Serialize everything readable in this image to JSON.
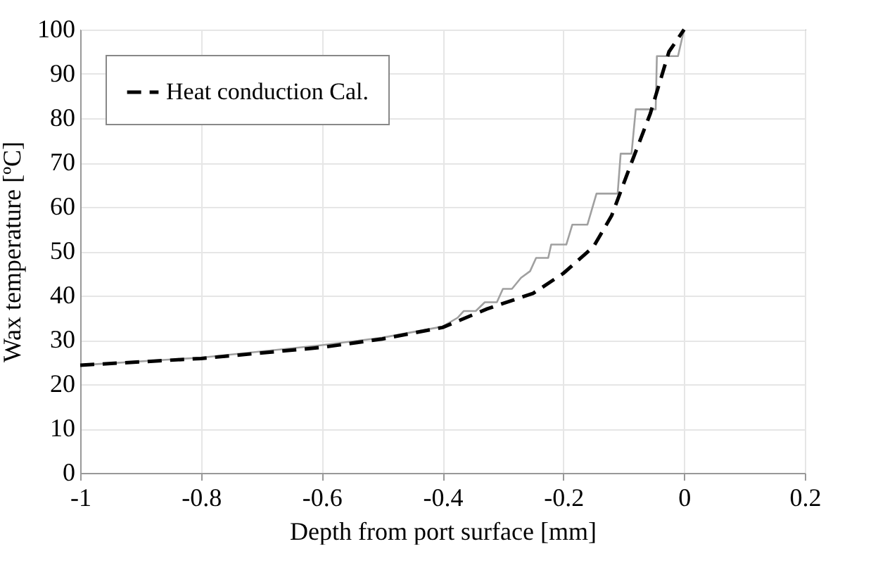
{
  "chart_data": {
    "type": "line",
    "xlabel": "Depth from port surface [mm]",
    "ylabel": "Wax temperature [ºC]",
    "xlim": [
      -1,
      0.2
    ],
    "xticks": [
      -1,
      -0.8,
      -0.6,
      -0.4,
      -0.2,
      0,
      0.2
    ],
    "ylim": [
      0,
      100
    ],
    "yticks": [
      0,
      10,
      20,
      30,
      40,
      50,
      60,
      70,
      80,
      90,
      100
    ],
    "grid": true,
    "legend": "top left",
    "marker": "none",
    "series": [
      {
        "color": "#a0a0a0",
        "line_style": "solid",
        "x": [
          -1,
          -0.8,
          -0.6,
          -0.5,
          -0.4,
          -0.375,
          -0.365,
          -0.345,
          -0.33,
          -0.31,
          -0.3,
          -0.285,
          -0.27,
          -0.255,
          -0.245,
          -0.225,
          -0.22,
          -0.195,
          -0.185,
          -0.16,
          -0.145,
          -0.11,
          -0.105,
          -0.087,
          -0.08,
          -0.047,
          -0.045,
          -0.01,
          0
        ],
        "values": [
          24.3,
          26,
          28.8,
          30.5,
          33,
          35,
          36.5,
          36.5,
          38.5,
          38.5,
          41.5,
          41.5,
          44,
          45.5,
          48.5,
          48.5,
          51.5,
          51.5,
          56,
          56,
          63,
          63,
          72,
          72,
          82,
          82,
          94,
          94,
          100
        ]
      },
      {
        "name": "Heat conduction Cal.",
        "color": "#000000",
        "line_style": "dashed",
        "x": [
          -1,
          -0.8,
          -0.6,
          -0.5,
          -0.4,
          -0.326,
          -0.25,
          -0.2,
          -0.15,
          -0.12,
          -0.087,
          -0.056,
          -0.025,
          0
        ],
        "values": [
          24.3,
          25.8,
          28.3,
          30.2,
          32.8,
          37,
          40.5,
          45,
          51,
          58,
          70,
          81,
          95,
          100
        ]
      }
    ]
  }
}
